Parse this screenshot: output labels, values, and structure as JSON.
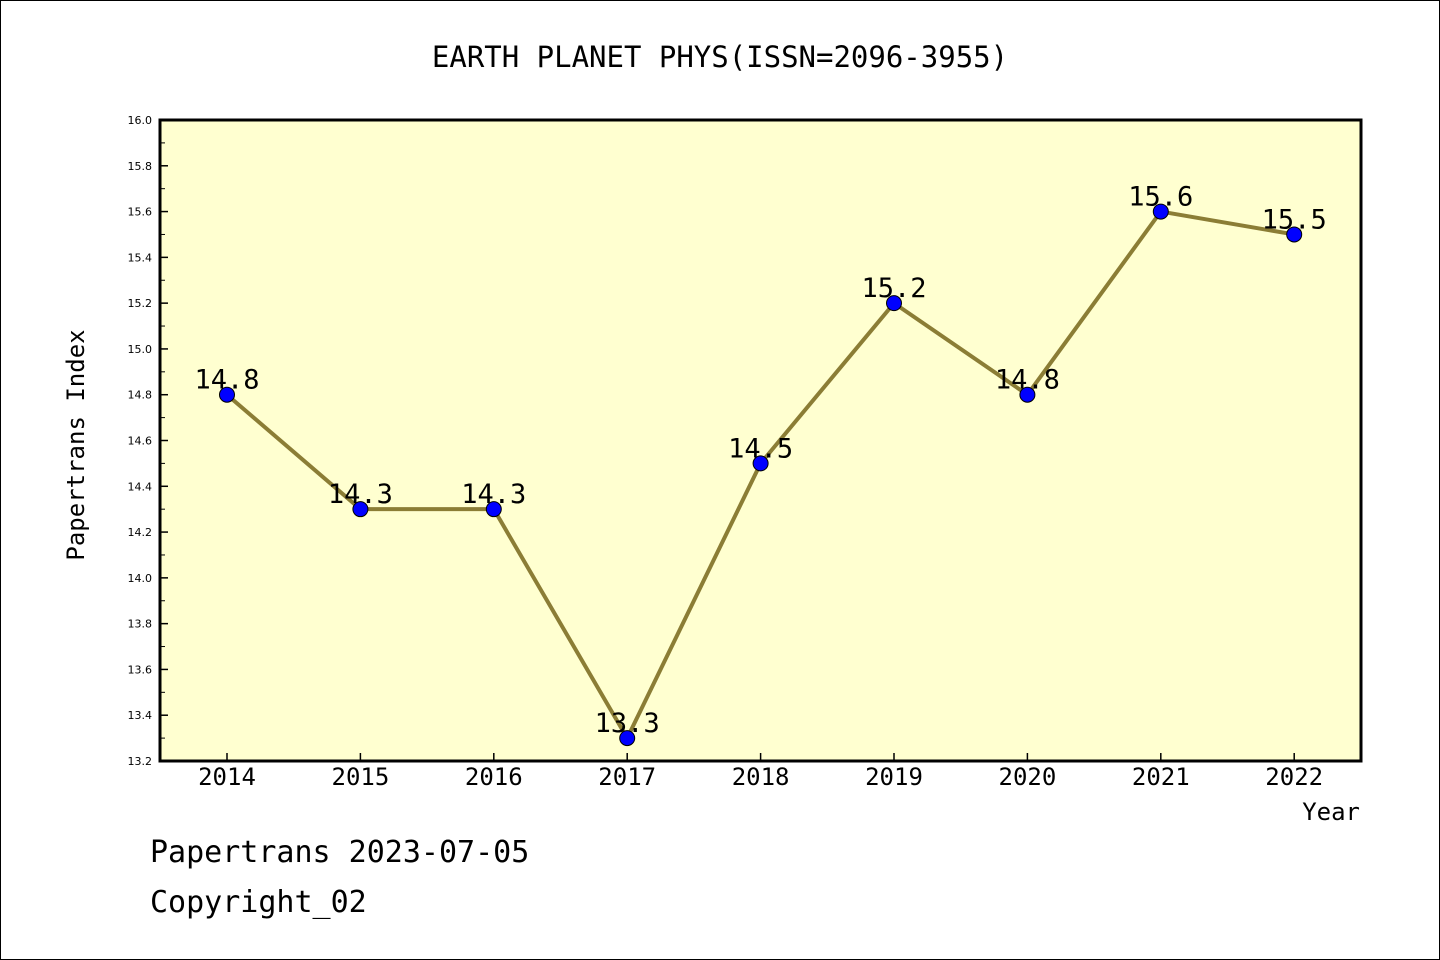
{
  "chart_data": {
    "type": "line",
    "title": "EARTH PLANET PHYS(ISSN=2096-3955)",
    "xlabel": "Year",
    "ylabel": "Papertrans Index",
    "categories": [
      "2014",
      "2015",
      "2016",
      "2017",
      "2018",
      "2019",
      "2020",
      "2021",
      "2022"
    ],
    "series": [
      {
        "values": [
          14.8,
          14.3,
          14.3,
          13.3,
          14.5,
          15.2,
          14.8,
          15.6,
          15.5
        ]
      }
    ],
    "data_labels": [
      "14.8",
      "14.3",
      "14.3",
      "13.3",
      "14.5",
      "15.2",
      "14.8",
      "15.6",
      "15.5"
    ],
    "ylim": [
      13.2,
      16.0
    ],
    "y_ticks": [
      "13.2",
      "13.4",
      "13.6",
      "13.8",
      "14.0",
      "14.2",
      "14.4",
      "14.6",
      "14.8",
      "15.0",
      "15.2",
      "15.4",
      "15.6",
      "15.8",
      "16.0"
    ],
    "grid": false,
    "legend": "none",
    "colors": {
      "plot_background": "#ffffd0",
      "line": "#8b7d35",
      "marker": "#0000ff",
      "axis": "#000000"
    }
  },
  "footer": {
    "line1": "Papertrans 2023-07-05",
    "line2": "Copyright_02"
  }
}
